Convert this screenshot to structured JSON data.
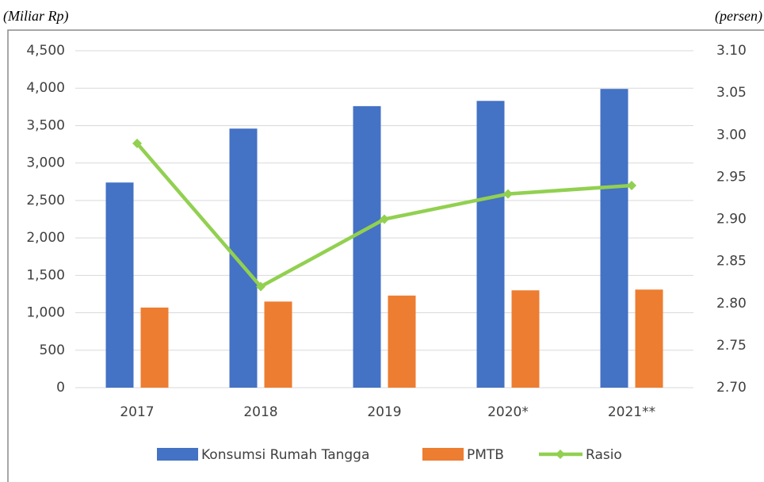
{
  "chart_data": {
    "type": "bar",
    "left_unit": "(Miliar Rp)",
    "right_unit": "(persen)",
    "categories": [
      "2017",
      "2018",
      "2019",
      "2020*",
      "2021**"
    ],
    "series": [
      {
        "name": "Konsumsi Rumah Tangga",
        "color": "#4472c4",
        "type": "bar",
        "values": [
          2740,
          3460,
          3760,
          3830,
          3990
        ]
      },
      {
        "name": "PMTB",
        "color": "#ed7d31",
        "type": "bar",
        "values": [
          1070,
          1150,
          1230,
          1300,
          1310
        ]
      },
      {
        "name": "Rasio",
        "color": "#92d050",
        "type": "line",
        "axis": "y2",
        "values": [
          2.99,
          2.82,
          2.9,
          2.93,
          2.94
        ]
      }
    ],
    "ylim": [
      0,
      4500
    ],
    "yticks": [
      0,
      500,
      {
        "value": 1000,
        "label": "1,000"
      },
      {
        "value": 1500,
        "label": "1,500"
      },
      {
        "value": 2000,
        "label": "2,000"
      },
      {
        "value": 2500,
        "label": "2,500"
      },
      {
        "value": 3000,
        "label": "3,000"
      },
      {
        "value": 3500,
        "label": "3,500"
      },
      {
        "value": 4000,
        "label": "4,000"
      },
      {
        "value": 4500,
        "label": "4,500"
      }
    ],
    "y2lim": [
      2.7,
      3.1
    ],
    "y2ticks": [
      {
        "value": 2.7,
        "label": "2.70"
      },
      2.75,
      {
        "value": 2.8,
        "label": "2.80"
      },
      2.85,
      {
        "value": 2.9,
        "label": "2.90"
      },
      2.95,
      {
        "value": 3.0,
        "label": "3.00"
      },
      3.05,
      {
        "value": 3.1,
        "label": "3.10"
      }
    ],
    "grid": true,
    "legend": "bottom"
  }
}
